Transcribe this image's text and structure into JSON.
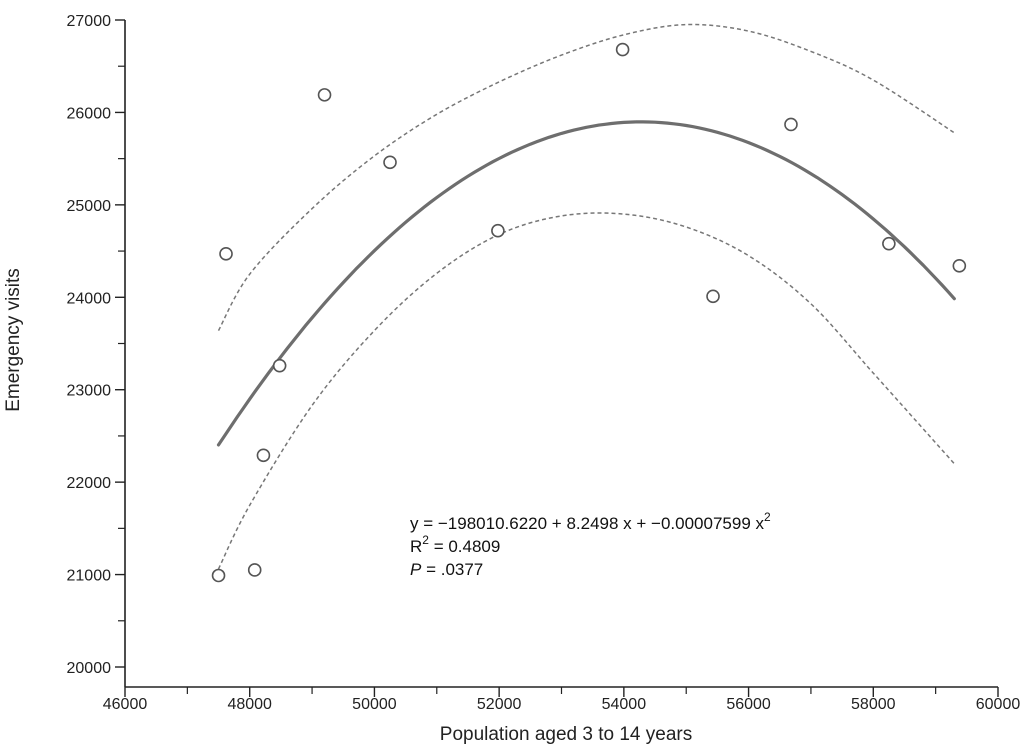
{
  "chart_data": {
    "type": "scatter",
    "xlabel": "Population aged 3 to 14 years",
    "ylabel": "Emergency visits",
    "xlim": [
      46000,
      60000
    ],
    "ylim": [
      20000,
      27000
    ],
    "x_ticks": [
      46000,
      48000,
      50000,
      52000,
      54000,
      56000,
      58000,
      60000
    ],
    "x_tick_labels": [
      "46000",
      "48000",
      "50000",
      "52000",
      "54000",
      "56000",
      "58000",
      "60000"
    ],
    "y_ticks": [
      20000,
      21000,
      22000,
      23000,
      24000,
      25000,
      26000,
      27000
    ],
    "y_tick_labels": [
      "20000",
      "21000",
      "22000",
      "23000",
      "24000",
      "25000",
      "26000",
      "27000"
    ],
    "grid": false,
    "points": [
      {
        "x": 47500,
        "y": 20990
      },
      {
        "x": 47620,
        "y": 24470
      },
      {
        "x": 48080,
        "y": 21050
      },
      {
        "x": 48220,
        "y": 22290
      },
      {
        "x": 48480,
        "y": 23260
      },
      {
        "x": 49200,
        "y": 26190
      },
      {
        "x": 50250,
        "y": 25460
      },
      {
        "x": 51980,
        "y": 24720
      },
      {
        "x": 53980,
        "y": 26680
      },
      {
        "x": 55430,
        "y": 24010
      },
      {
        "x": 56680,
        "y": 25870
      },
      {
        "x": 58250,
        "y": 24580
      },
      {
        "x": 59380,
        "y": 24340
      }
    ],
    "fit": {
      "type": "quadratic",
      "intercept": -198010.622,
      "b1": 8.2498,
      "b2": -7.599e-05,
      "x_range": [
        47500,
        59300
      ]
    },
    "confidence_band": {
      "upper": [
        {
          "x": 47500,
          "y": 23640
        },
        {
          "x": 48000,
          "y": 24250
        },
        {
          "x": 49000,
          "y": 24960
        },
        {
          "x": 50000,
          "y": 25530
        },
        {
          "x": 51000,
          "y": 25980
        },
        {
          "x": 52000,
          "y": 26330
        },
        {
          "x": 53000,
          "y": 26620
        },
        {
          "x": 54000,
          "y": 26840
        },
        {
          "x": 55000,
          "y": 26950
        },
        {
          "x": 56000,
          "y": 26880
        },
        {
          "x": 57000,
          "y": 26660
        },
        {
          "x": 58000,
          "y": 26350
        },
        {
          "x": 59300,
          "y": 25780
        }
      ],
      "lower": [
        {
          "x": 47500,
          "y": 21060
        },
        {
          "x": 48000,
          "y": 21750
        },
        {
          "x": 49000,
          "y": 22830
        },
        {
          "x": 50000,
          "y": 23640
        },
        {
          "x": 51000,
          "y": 24260
        },
        {
          "x": 52000,
          "y": 24680
        },
        {
          "x": 53000,
          "y": 24880
        },
        {
          "x": 54000,
          "y": 24900
        },
        {
          "x": 55000,
          "y": 24760
        },
        {
          "x": 56000,
          "y": 24450
        },
        {
          "x": 57000,
          "y": 23930
        },
        {
          "x": 58000,
          "y": 23180
        },
        {
          "x": 59300,
          "y": 22200
        }
      ]
    },
    "annotation": {
      "equation_main": "y = −198010.6220 + 8.2498 x + −0.00007599 x",
      "equation_sup": "2",
      "r2_prefix": "R",
      "r2_sup": "2",
      "r2_value": " = 0.4809",
      "p_label": "P",
      "p_value": " = .0377"
    }
  }
}
